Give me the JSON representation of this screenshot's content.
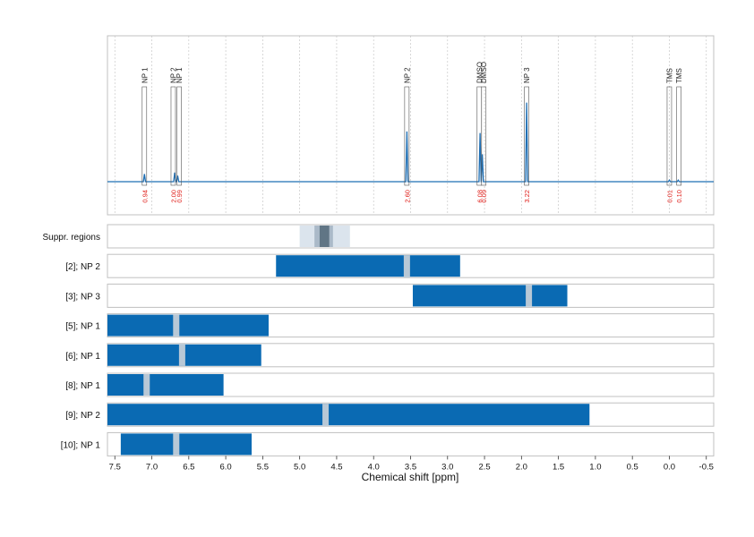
{
  "colors": {
    "spectrum": "#1f6fb4",
    "bar": "#0a6ab3",
    "gap": "#b8c8d6",
    "integral_label": "#e0201b",
    "panel_border": "#c0c0c0",
    "grid": "#c8c8c8",
    "suppr_light": "#dbe4ed",
    "suppr_mid": "#aab9c8",
    "suppr_dark": "#607585"
  },
  "chart_data": {
    "type": "nmr-spectrum-with-bar-tracks",
    "x_axis": {
      "label": "Chemical shift [ppm]",
      "reversed": true,
      "range": [
        7.6,
        -0.6
      ],
      "ticks": [
        7.5,
        7.0,
        6.5,
        6.0,
        5.5,
        5.0,
        4.5,
        4.0,
        3.5,
        3.0,
        2.5,
        2.0,
        1.5,
        1.0,
        0.5,
        0.0,
        -0.5
      ],
      "tick_labels": [
        "7.5",
        "7.0",
        "6.5",
        "6.0",
        "5.5",
        "5.0",
        "4.5",
        "4.0",
        "3.5",
        "3.0",
        "2.5",
        "2.0",
        "1.5",
        "1.0",
        "0.5",
        "0.0",
        "-0.5"
      ],
      "grid": true
    },
    "spectrum": {
      "peaks": [
        {
          "ppm": 7.1,
          "height": 0.05
        },
        {
          "ppm": 6.69,
          "height": 0.06
        },
        {
          "ppm": 6.65,
          "height": 0.04
        },
        {
          "ppm": 3.55,
          "height": 0.33
        },
        {
          "ppm": 2.56,
          "height": 0.32
        },
        {
          "ppm": 2.53,
          "height": 0.18
        },
        {
          "ppm": 1.93,
          "height": 0.52
        },
        {
          "ppm": 0.0,
          "height": 0.01
        },
        {
          "ppm": -0.12,
          "height": 0.01
        }
      ]
    },
    "signals": [
      {
        "label": "NP 1",
        "ppm": 7.1,
        "integral": "0.94"
      },
      {
        "label": "NP 2",
        "ppm": 6.71,
        "integral": "2.00"
      },
      {
        "label": "NP 1",
        "ppm": 6.63,
        "integral": "0.99"
      },
      {
        "label": "NP 2",
        "ppm": 3.55,
        "integral": "2.60"
      },
      {
        "label": "DMSO",
        "ppm": 2.57,
        "integral": "6.08"
      },
      {
        "label": "DMSO",
        "ppm": 2.51,
        "integral": "0.09"
      },
      {
        "label": "NP 3",
        "ppm": 1.93,
        "integral": "3.22"
      },
      {
        "label": "TMS",
        "ppm": 0.0,
        "integral": "0.01"
      },
      {
        "label": "TMS",
        "ppm": -0.13,
        "integral": "0.10"
      }
    ],
    "suppressed_regions": {
      "label": "Suppr. regions",
      "bands": [
        {
          "from": 5.0,
          "to": 4.32,
          "shade": "light"
        },
        {
          "from": 4.8,
          "to": 4.55,
          "shade": "mid"
        },
        {
          "from": 4.73,
          "to": 4.6,
          "shade": "dark"
        }
      ]
    },
    "tracks": [
      {
        "label": "[2]; NP 2",
        "from": 5.32,
        "to": 2.83,
        "gaps": [
          3.55
        ]
      },
      {
        "label": "[3]; NP 3",
        "from": 3.47,
        "to": 1.38,
        "gaps": [
          1.9
        ]
      },
      {
        "label": "[5]; NP 1",
        "from": 7.6,
        "to": 5.42,
        "gaps": [
          6.67
        ]
      },
      {
        "label": "[6]; NP 1",
        "from": 7.6,
        "to": 5.52,
        "gaps": [
          6.59
        ]
      },
      {
        "label": "[8]; NP 1",
        "from": 7.6,
        "to": 6.03,
        "gaps": [
          7.07
        ]
      },
      {
        "label": "[9]; NP 2",
        "from": 7.6,
        "to": 1.08,
        "gaps": [
          4.65
        ]
      },
      {
        "label": "[10]; NP 1",
        "from": 7.42,
        "to": 5.65,
        "gaps": [
          6.67
        ]
      }
    ]
  }
}
